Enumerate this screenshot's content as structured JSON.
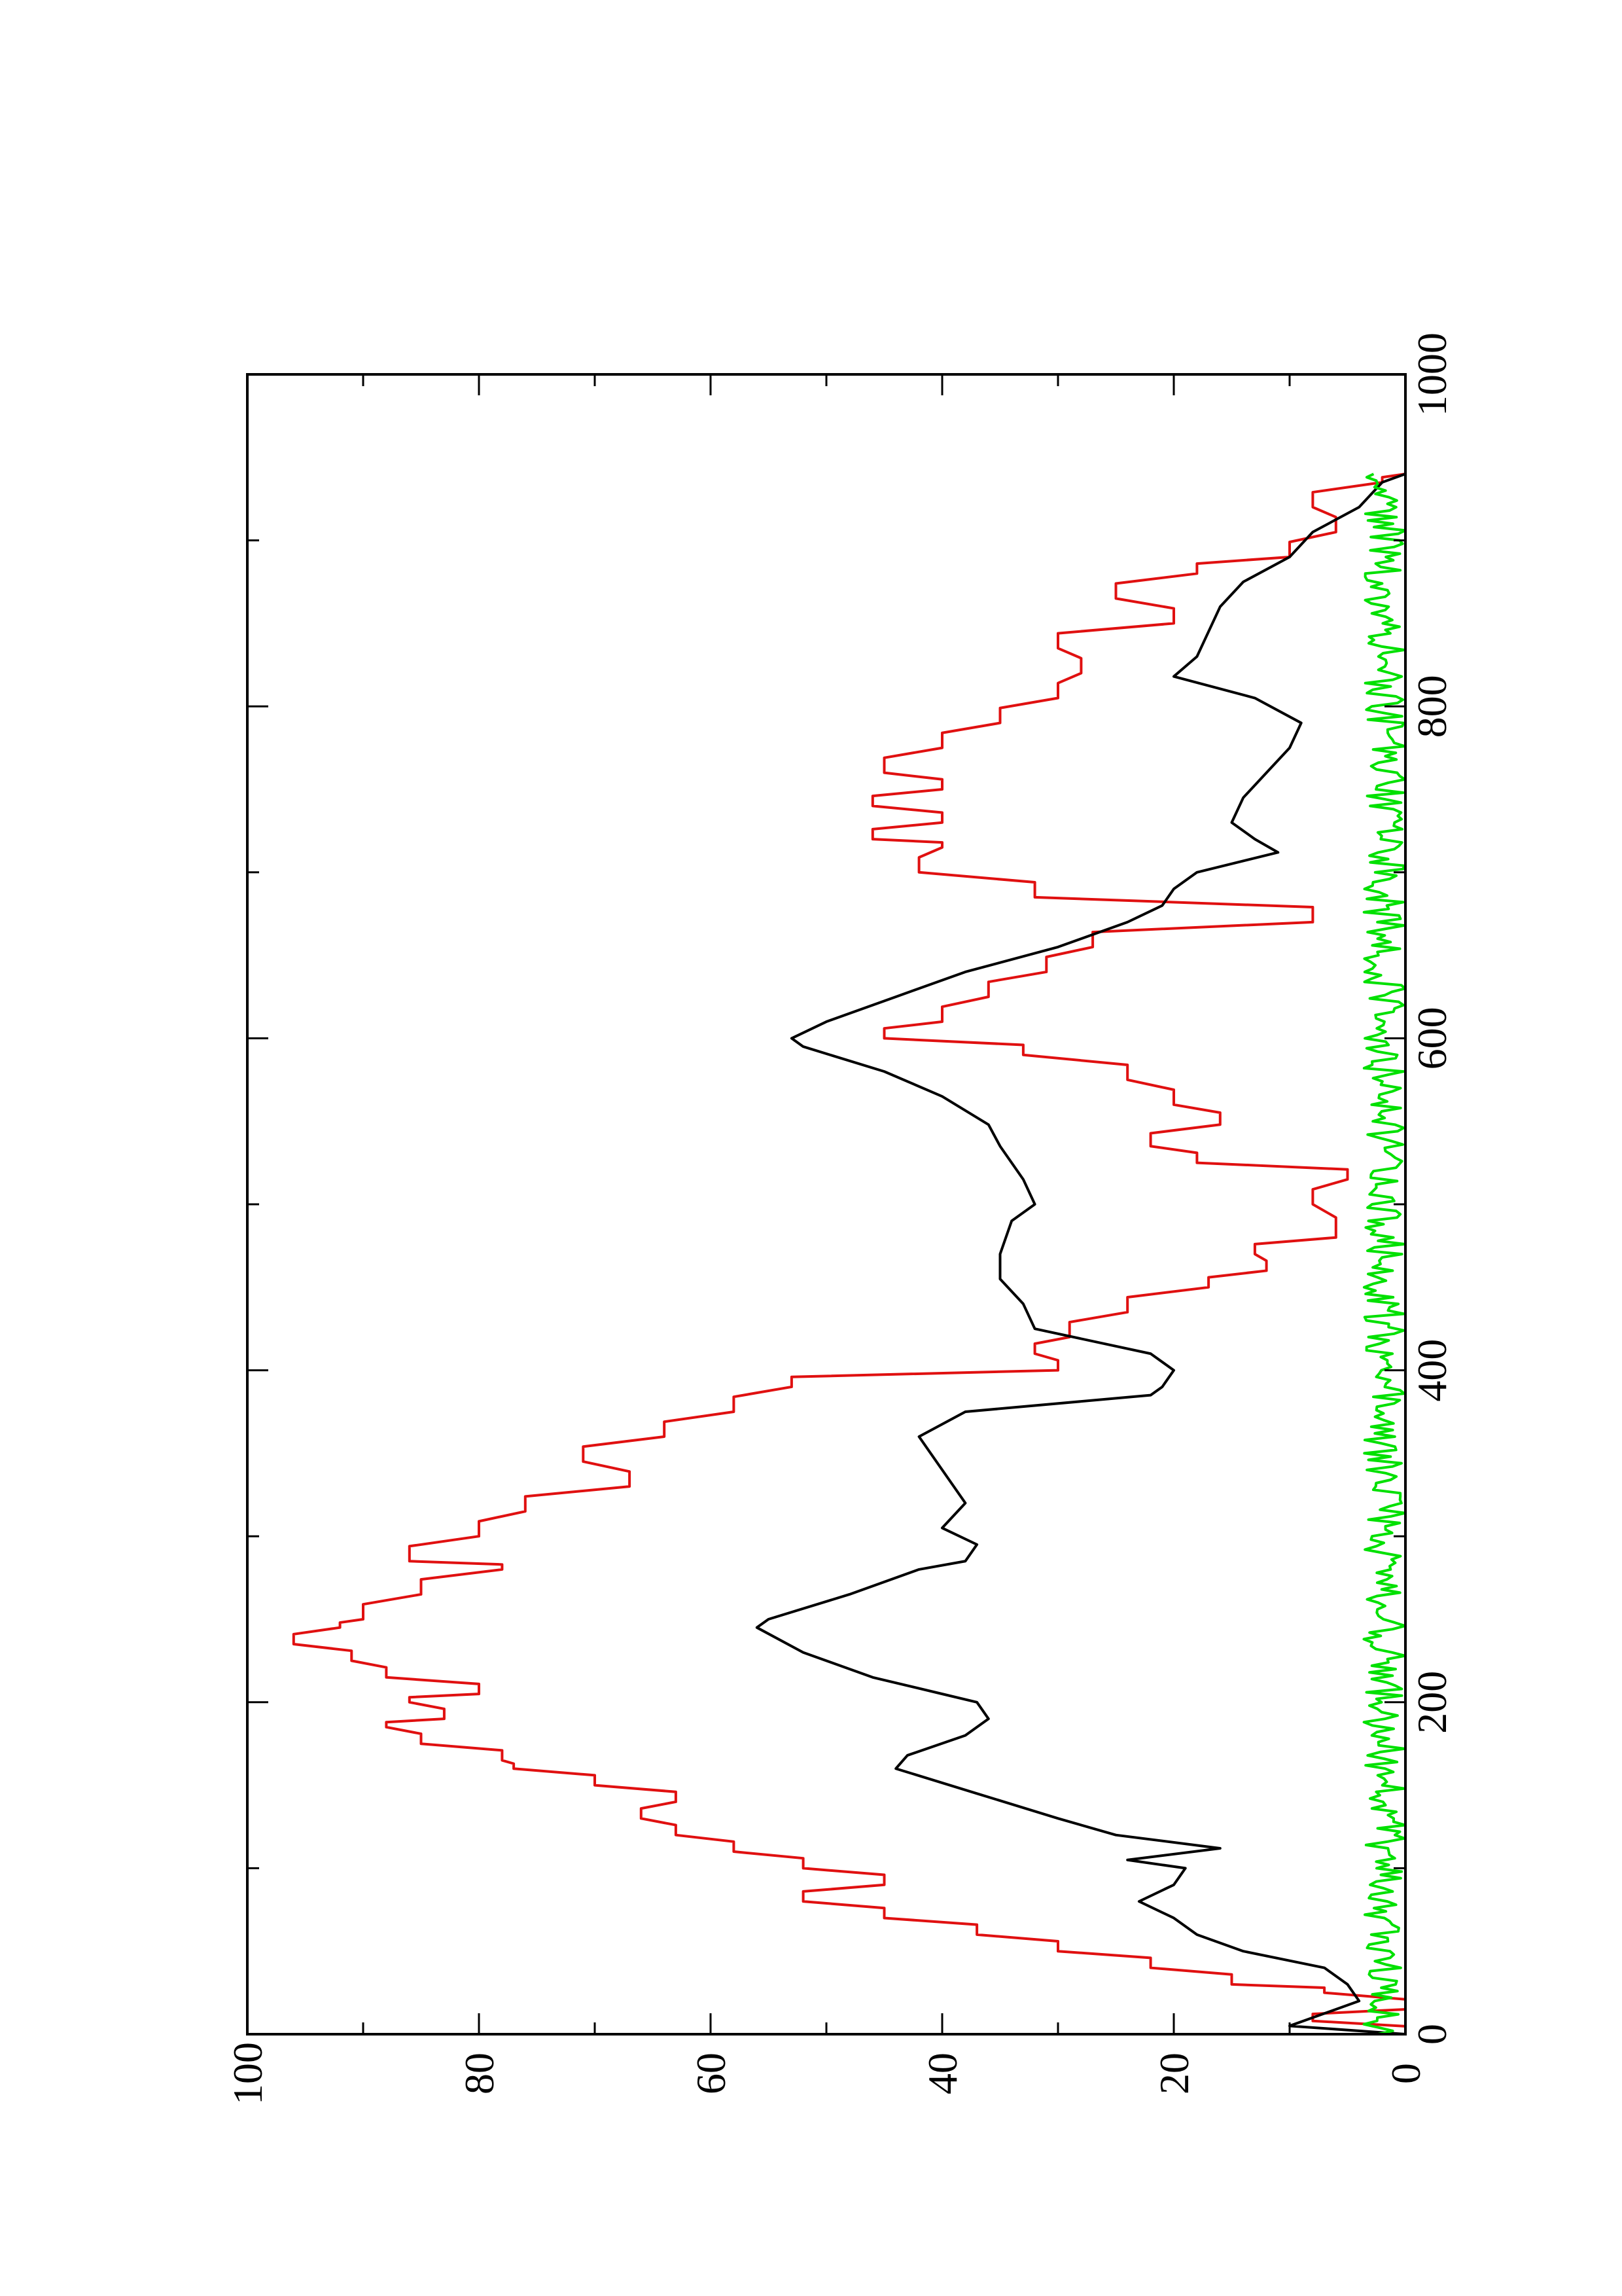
{
  "chart_data": {
    "type": "line",
    "orientation": "rotated-90-clockwise",
    "title": "",
    "xlabel": "",
    "ylabel": "",
    "xlim": [
      0,
      1000
    ],
    "ylim": [
      0,
      100
    ],
    "x_ticks": [
      0,
      200,
      400,
      600,
      800,
      1000
    ],
    "x_tick_labels": [
      "0",
      "200",
      "400",
      "600",
      "800",
      "1000"
    ],
    "y_ticks": [
      0,
      20,
      40,
      60,
      80,
      100
    ],
    "y_tick_labels": [
      "0",
      "20",
      "40",
      "60",
      "80",
      "100"
    ],
    "grid": false,
    "legend": "none",
    "series": [
      {
        "color": "#e01010",
        "style": "step",
        "x": [
          0,
          8,
          15,
          25,
          30,
          40,
          50,
          60,
          70,
          80,
          90,
          100,
          110,
          120,
          130,
          140,
          150,
          160,
          165,
          175,
          185,
          190,
          200,
          205,
          215,
          225,
          235,
          245,
          250,
          265,
          280,
          285,
          300,
          315,
          330,
          345,
          360,
          375,
          390,
          400,
          410,
          420,
          435,
          450,
          460,
          470,
          480,
          500,
          515,
          525,
          535,
          548,
          560,
          575,
          590,
          600,
          610,
          625,
          640,
          655,
          670,
          685,
          700,
          715,
          720,
          730,
          740,
          750,
          760,
          775,
          790,
          805,
          820,
          835,
          850,
          865,
          880,
          890,
          905,
          920,
          935,
          940
        ],
        "y": [
          0,
          8,
          0,
          7,
          15,
          22,
          30,
          37,
          45,
          52,
          45,
          52,
          58,
          63,
          66,
          63,
          70,
          77,
          78,
          85,
          88,
          83,
          86,
          80,
          88,
          91,
          96,
          92,
          90,
          85,
          78,
          86,
          80,
          76,
          67,
          71,
          64,
          58,
          53,
          30,
          32,
          29,
          24,
          17,
          12,
          13,
          6,
          8,
          5,
          18,
          22,
          16,
          20,
          24,
          33,
          45,
          40,
          36,
          31,
          27,
          8,
          32,
          42,
          40,
          46,
          40,
          46,
          40,
          45,
          40,
          35,
          30,
          28,
          30,
          20,
          25,
          18,
          10,
          6,
          8,
          2,
          0
        ]
      },
      {
        "color": "#000000",
        "style": "line",
        "x": [
          0,
          5,
          10,
          15,
          20,
          30,
          40,
          50,
          60,
          70,
          80,
          90,
          100,
          105,
          112,
          120,
          130,
          145,
          160,
          168,
          180,
          190,
          200,
          205,
          215,
          230,
          245,
          250,
          265,
          280,
          285,
          295,
          305,
          320,
          330,
          340,
          360,
          375,
          385,
          390,
          400,
          410,
          425,
          440,
          455,
          470,
          490,
          500,
          515,
          525,
          535,
          548,
          565,
          580,
          595,
          600,
          610,
          625,
          640,
          655,
          670,
          680,
          690,
          700,
          712,
          720,
          730,
          745,
          760,
          775,
          790,
          805,
          818,
          830,
          845,
          860,
          875,
          890,
          905,
          920,
          935,
          940
        ],
        "y": [
          0,
          10,
          8,
          6,
          4,
          5,
          7,
          14,
          18,
          20,
          23,
          20,
          19,
          24,
          16,
          25,
          30,
          37,
          44,
          43,
          38,
          36,
          37,
          40,
          46,
          52,
          56,
          55,
          48,
          42,
          38,
          37,
          40,
          38,
          39,
          40,
          42,
          38,
          22,
          21,
          20,
          22,
          32,
          33,
          35,
          35,
          34,
          32,
          33,
          34,
          35,
          36,
          40,
          45,
          52,
          53,
          50,
          44,
          38,
          30,
          24,
          21,
          20,
          18,
          11,
          13,
          15,
          14,
          12,
          10,
          9,
          13,
          20,
          18,
          17,
          16,
          14,
          10,
          8,
          4,
          2,
          0
        ]
      },
      {
        "color": "#00e000",
        "style": "noise",
        "x": [
          0,
          940
        ],
        "y_mean": 1.8,
        "y_amplitude": 1.8
      }
    ]
  }
}
